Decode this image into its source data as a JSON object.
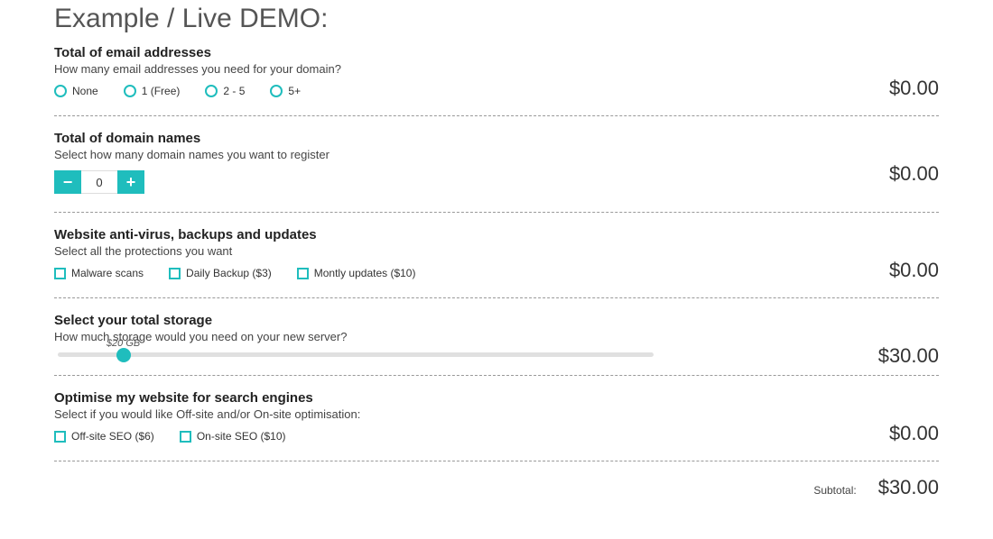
{
  "colors": {
    "accent": "#1fbdbd",
    "text": "#333333",
    "heading": "#555555",
    "divider": "#999999",
    "slider_track": "#e0e0e0",
    "bg": "#ffffff"
  },
  "page_title": "Example / Live DEMO:",
  "sections": {
    "email": {
      "title": "Total of email addresses",
      "desc": "How many email addresses you need for your domain?",
      "options": [
        "None",
        "1 (Free)",
        "2 - 5",
        "5+"
      ],
      "price": "$0.00"
    },
    "domains": {
      "title": "Total of domain names",
      "desc": "Select how many domain names you want to register",
      "value": "0",
      "minus": "−",
      "plus": "+",
      "price": "$0.00"
    },
    "protection": {
      "title": "Website anti-virus, backups and updates",
      "desc": "Select all the protections you want",
      "options": [
        "Malware scans",
        "Daily Backup ($3)",
        "Montly updates ($10)"
      ],
      "price": "$0.00"
    },
    "storage": {
      "title": "Select your total storage",
      "desc": "How much storage would you need on your new server?",
      "value_label": "$20 GB",
      "thumb_percent": 11,
      "price": "$30.00"
    },
    "seo": {
      "title": "Optimise my website for search engines",
      "desc": "Select if you would like Off-site and/or On-site optimisation:",
      "options": [
        "Off-site SEO ($6)",
        "On-site SEO ($10)"
      ],
      "price": "$0.00"
    }
  },
  "subtotal": {
    "label": "Subtotal:",
    "value": "$30.00"
  }
}
